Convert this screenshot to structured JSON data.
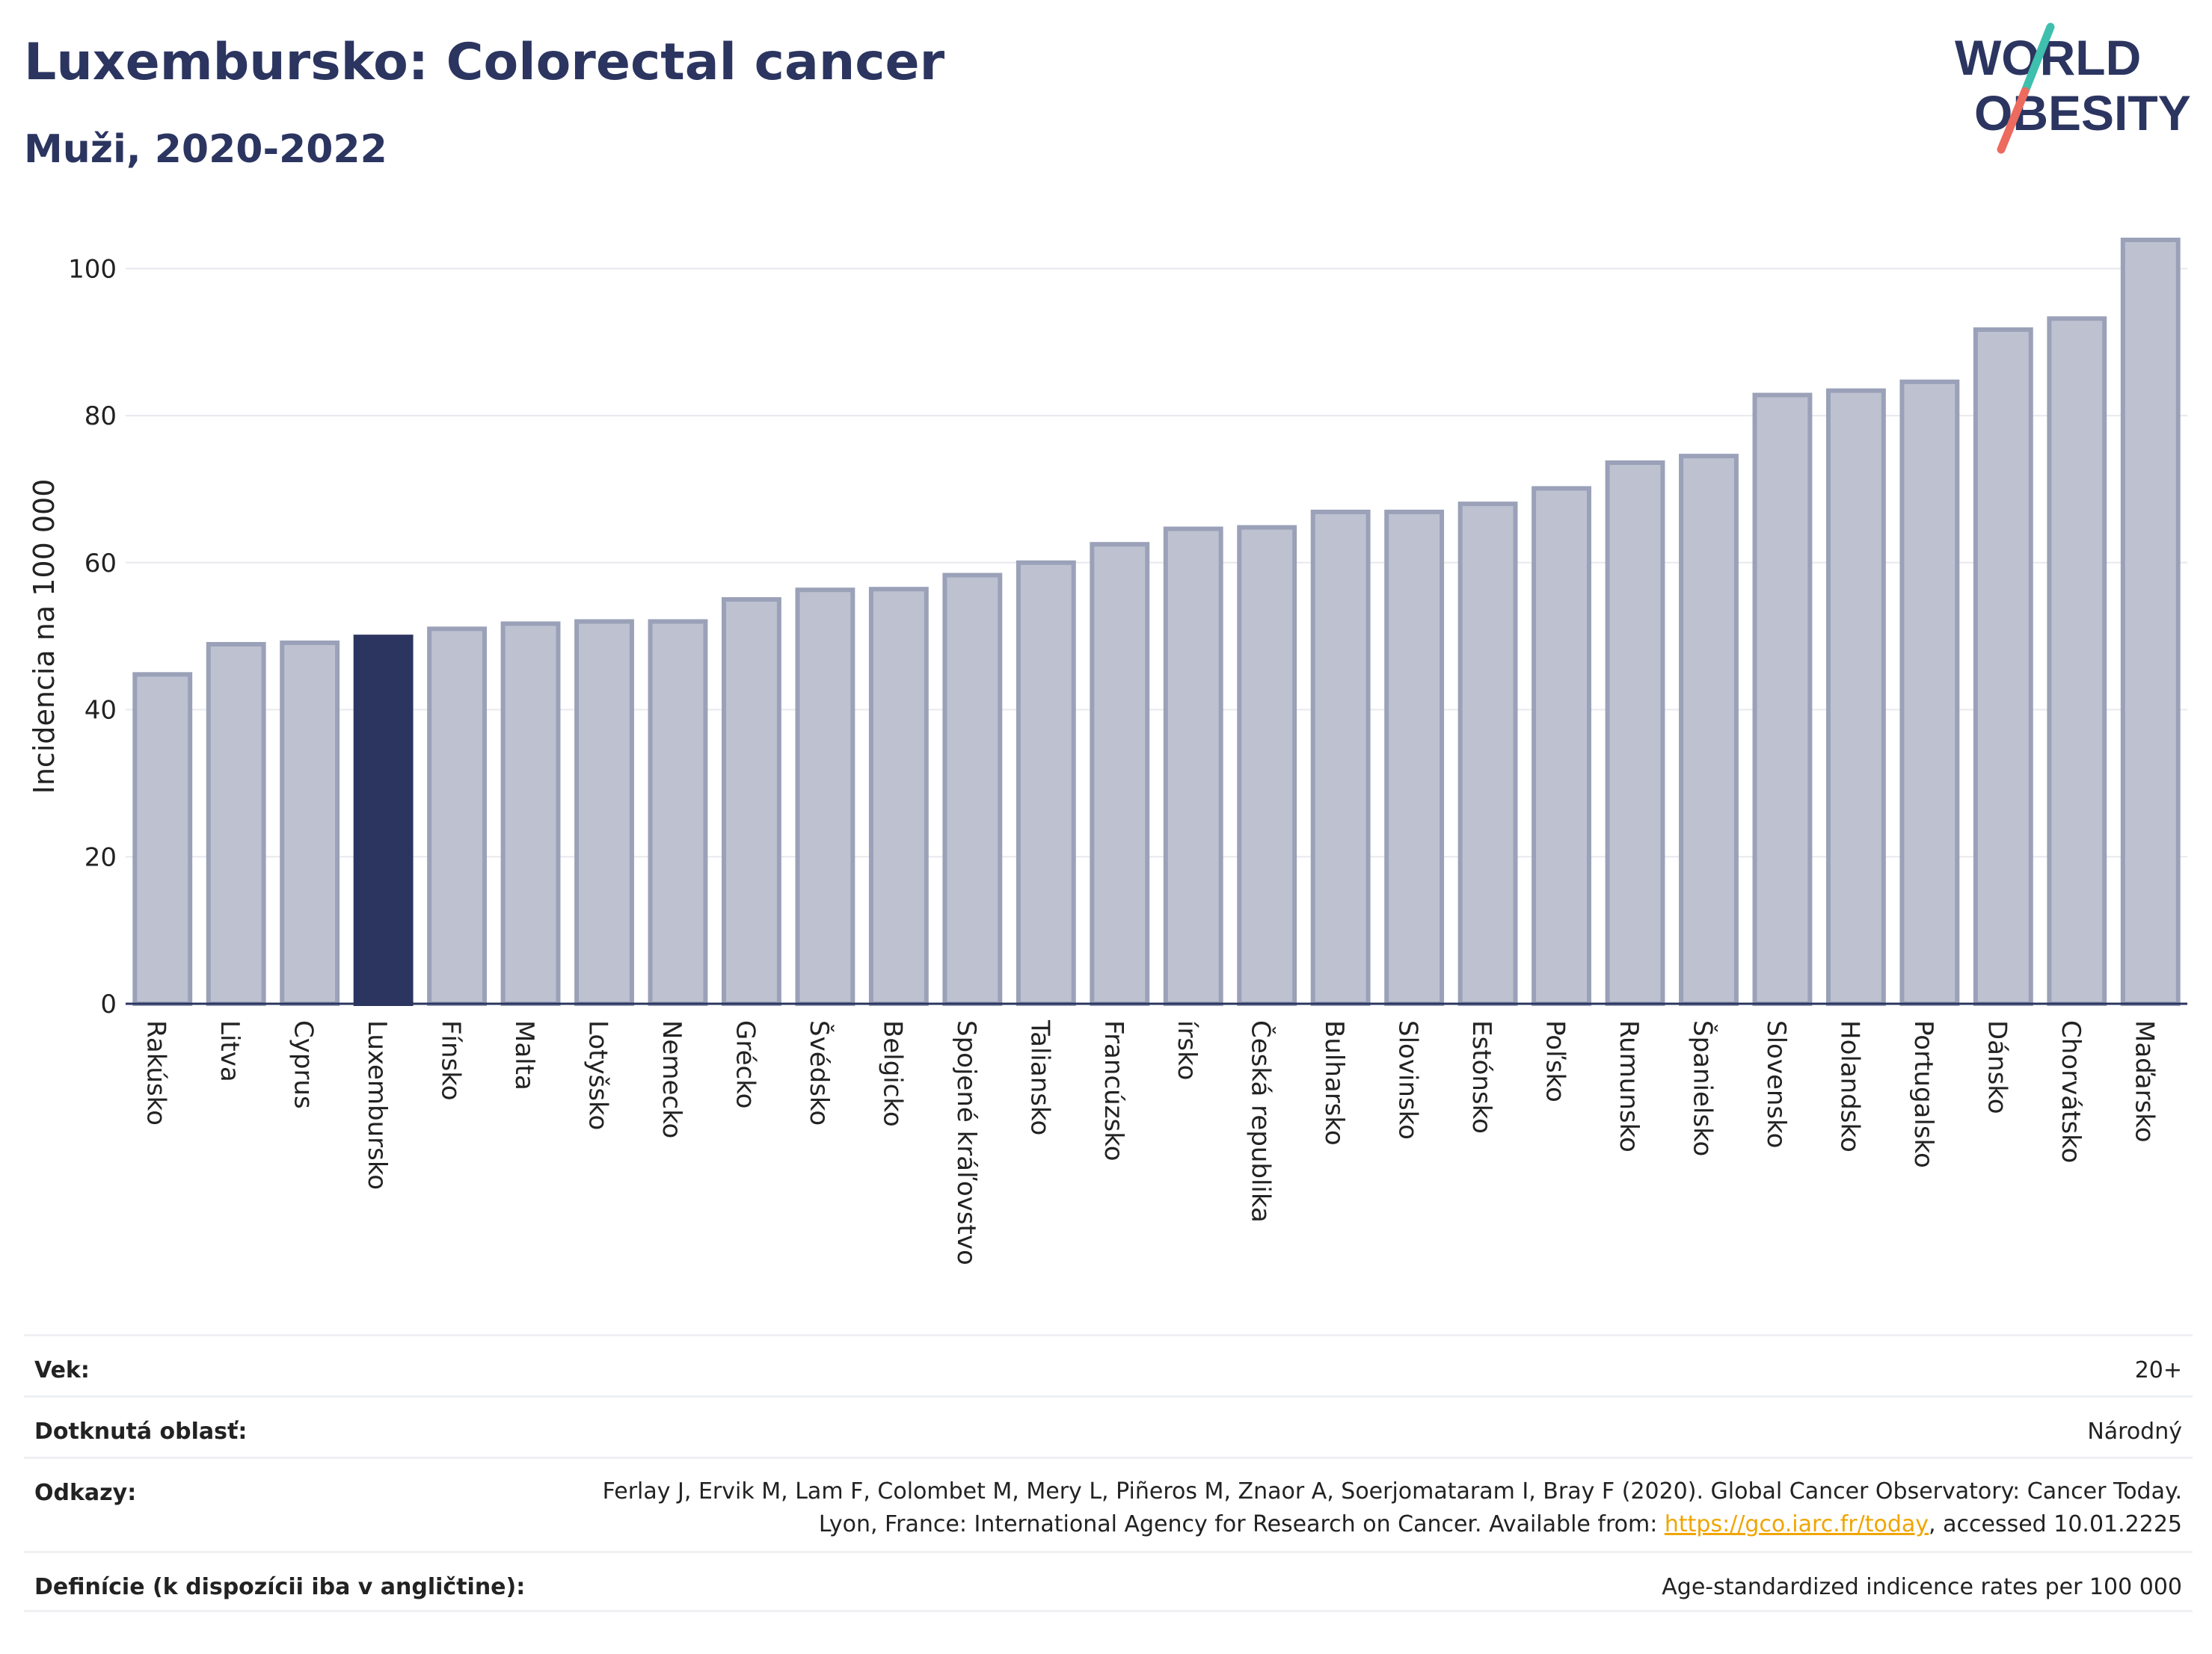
{
  "title": "Luxembursko: Colorectal cancer",
  "subtitle": "Muži, 2020-2022",
  "logo": {
    "line1": "WORLD",
    "line2": "OBESITY"
  },
  "colors": {
    "title": "#2b3560",
    "bar_default": "#bec2d0",
    "bar_default_stroke": "#9aa1b8",
    "bar_highlight": "#2b3560",
    "grid": "#e8e8ee",
    "logo_teal": "#3fbfad",
    "logo_coral": "#ec6b5e"
  },
  "chart_data": {
    "type": "bar",
    "ylabel": "Incidencia na 100 000",
    "ylim": [
      0,
      104
    ],
    "yticks": [
      0,
      20,
      40,
      60,
      80,
      100
    ],
    "highlight": "Luxembursko",
    "grid": true,
    "categories": [
      "Rakúsko",
      "Litva",
      "Cyprus",
      "Luxembursko",
      "Fínsko",
      "Malta",
      "Lotyšsko",
      "Nemecko",
      "Grécko",
      "Švédsko",
      "Belgicko",
      "Spojené kráľovstvo",
      "Taliansko",
      "Francúzsko",
      "írsko",
      "Česká republika",
      "Bulharsko",
      "Slovinsko",
      "Estónsko",
      "Poľsko",
      "Rumunsko",
      "Španielsko",
      "Slovensko",
      "Holandsko",
      "Portugalsko",
      "Dánsko",
      "Chorvátsko",
      "Maďarsko"
    ],
    "values": [
      44.8,
      48.9,
      49.1,
      49.9,
      51.0,
      51.7,
      52.0,
      52.0,
      55.0,
      56.3,
      56.4,
      58.3,
      60.0,
      62.5,
      64.6,
      64.8,
      66.9,
      66.9,
      68.0,
      70.1,
      73.6,
      74.5,
      82.8,
      83.4,
      84.6,
      91.7,
      93.2,
      103.9
    ]
  },
  "info": {
    "age_label": "Vek:",
    "age_value": "20+",
    "area_label": "Dotknutá oblasť:",
    "area_value": "Národný",
    "ref_label": "Odkazy:",
    "ref_text_1": "Ferlay J, Ervik M, Lam F, Colombet M, Mery L, Piñeros M, Znaor A, Soerjomataram I, Bray F (2020). Global Cancer Observatory: Cancer Today. Lyon, France: International Agency for Research on Cancer. Available from: ",
    "ref_link": "https://gco.iarc.fr/today",
    "ref_text_2": ", accessed 10.01.2225",
    "def_label": "Definície (k dispozícii iba v angličtine):",
    "def_value": "Age-standardized indicence rates per 100 000"
  }
}
